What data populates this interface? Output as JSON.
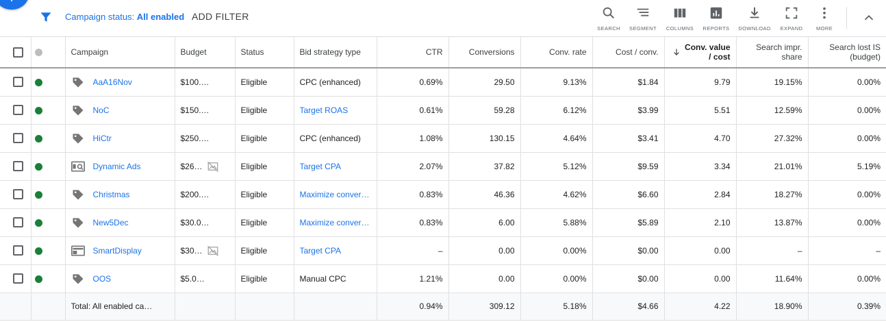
{
  "toolbar": {
    "filter_label": "Campaign status: ",
    "filter_value": "All enabled",
    "add_filter": "ADD FILTER",
    "tools": [
      {
        "label": "SEARCH",
        "icon": "search-icon"
      },
      {
        "label": "SEGMENT",
        "icon": "segment-icon"
      },
      {
        "label": "COLUMNS",
        "icon": "columns-icon"
      },
      {
        "label": "REPORTS",
        "icon": "reports-icon"
      },
      {
        "label": "DOWNLOAD",
        "icon": "download-icon"
      },
      {
        "label": "EXPAND",
        "icon": "expand-icon"
      },
      {
        "label": "MORE",
        "icon": "more-vert-icon"
      }
    ]
  },
  "colors": {
    "accent": "#1a73e8",
    "status_enabled": "#188038",
    "status_header": "#bdbdbd"
  },
  "table": {
    "headers": {
      "campaign": "Campaign",
      "budget": "Budget",
      "status": "Status",
      "bid_strategy": "Bid strategy type",
      "ctr": "CTR",
      "conversions": "Conversions",
      "conv_rate": "Conv. rate",
      "cost_conv": "Cost / conv.",
      "conv_value_cost_1": "Conv. value",
      "conv_value_cost_2": "/ cost",
      "search_impr_1": "Search impr.",
      "search_impr_2": "share",
      "search_lost_1": "Search lost IS",
      "search_lost_2": "(budget)"
    },
    "rows": [
      {
        "icon": "search-campaign-icon",
        "campaign": "AaA16Nov",
        "budget": "$100.…",
        "budget_icon": "",
        "status": "Eligible",
        "bid": "CPC (enhanced)",
        "bid_link": false,
        "ctr": "0.69%",
        "conversions": "29.50",
        "conv_rate": "9.13%",
        "cost_conv": "$1.84",
        "conv_value_cost": "9.79",
        "search_impr": "19.15%",
        "search_lost": "0.00%"
      },
      {
        "icon": "search-campaign-icon",
        "campaign": "NoC",
        "budget": "$150.…",
        "budget_icon": "",
        "status": "Eligible",
        "bid": "Target ROAS",
        "bid_link": true,
        "ctr": "0.61%",
        "conversions": "59.28",
        "conv_rate": "6.12%",
        "cost_conv": "$3.99",
        "conv_value_cost": "5.51",
        "search_impr": "12.59%",
        "search_lost": "0.00%"
      },
      {
        "icon": "search-campaign-icon",
        "campaign": "HiCtr",
        "budget": "$250.…",
        "budget_icon": "",
        "status": "Eligible",
        "bid": "CPC (enhanced)",
        "bid_link": false,
        "ctr": "1.08%",
        "conversions": "130.15",
        "conv_rate": "4.64%",
        "cost_conv": "$3.41",
        "conv_value_cost": "4.70",
        "search_impr": "27.32%",
        "search_lost": "0.00%"
      },
      {
        "icon": "dynamic-ads-icon",
        "campaign": "Dynamic Ads",
        "budget": "$26…",
        "budget_icon": "no-budget-image-icon",
        "status": "Eligible",
        "bid": "Target CPA",
        "bid_link": true,
        "ctr": "2.07%",
        "conversions": "37.82",
        "conv_rate": "5.12%",
        "cost_conv": "$9.59",
        "conv_value_cost": "3.34",
        "search_impr": "21.01%",
        "search_lost": "5.19%"
      },
      {
        "icon": "search-campaign-icon",
        "campaign": "Christmas",
        "budget": "$200.…",
        "budget_icon": "",
        "status": "Eligible",
        "bid": "Maximize conver…",
        "bid_link": true,
        "ctr": "0.83%",
        "conversions": "46.36",
        "conv_rate": "4.62%",
        "cost_conv": "$6.60",
        "conv_value_cost": "2.84",
        "search_impr": "18.27%",
        "search_lost": "0.00%"
      },
      {
        "icon": "search-campaign-icon",
        "campaign": "New5Dec",
        "budget": "$30.0…",
        "budget_icon": "",
        "status": "Eligible",
        "bid": "Maximize conver…",
        "bid_link": true,
        "ctr": "0.83%",
        "conversions": "6.00",
        "conv_rate": "5.88%",
        "cost_conv": "$5.89",
        "conv_value_cost": "2.10",
        "search_impr": "13.87%",
        "search_lost": "0.00%"
      },
      {
        "icon": "display-campaign-icon",
        "campaign": "SmartDisplay",
        "budget": "$30…",
        "budget_icon": "no-budget-image-icon",
        "status": "Eligible",
        "bid": "Target CPA",
        "bid_link": true,
        "ctr": "–",
        "conversions": "0.00",
        "conv_rate": "0.00%",
        "cost_conv": "$0.00",
        "conv_value_cost": "0.00",
        "search_impr": "–",
        "search_lost": "–"
      },
      {
        "icon": "search-campaign-icon",
        "campaign": "OOS",
        "budget": "$5.0…",
        "budget_icon": "",
        "status": "Eligible",
        "bid": "Manual CPC",
        "bid_link": false,
        "ctr": "1.21%",
        "conversions": "0.00",
        "conv_rate": "0.00%",
        "cost_conv": "$0.00",
        "conv_value_cost": "0.00",
        "search_impr": "11.64%",
        "search_lost": "0.00%"
      }
    ],
    "total": {
      "label": "Total: All enabled ca…",
      "ctr": "0.94%",
      "conversions": "309.12",
      "conv_rate": "5.18%",
      "cost_conv": "$4.66",
      "conv_value_cost": "4.22",
      "search_impr": "18.90%",
      "search_lost": "0.39%"
    }
  }
}
